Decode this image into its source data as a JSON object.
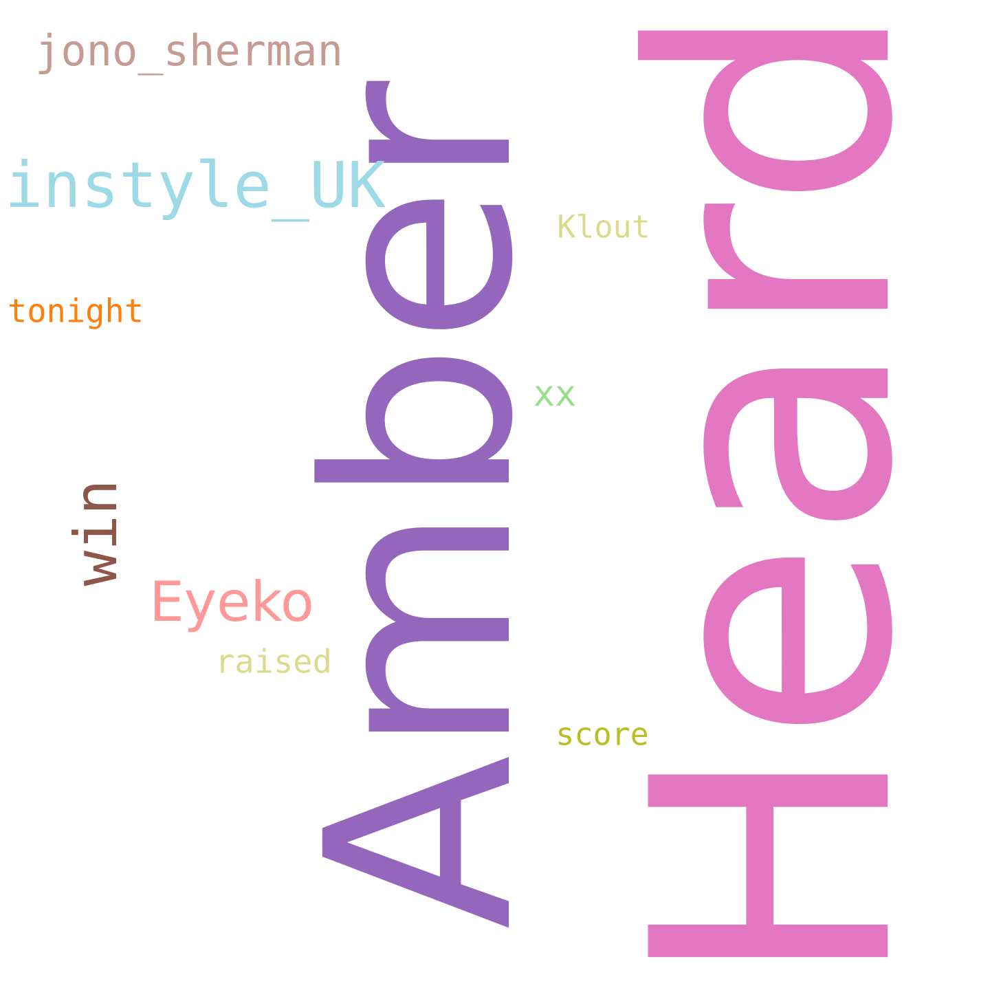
{
  "words": {
    "heard": {
      "text": "Heard",
      "color": "#e377c2"
    },
    "amber": {
      "text": "Amber",
      "color": "#9467bd"
    },
    "jono_sherman": {
      "text": "jono_sherman",
      "color": "#c49c94"
    },
    "instyle_uk": {
      "text": "instyle_UK",
      "color": "#9edae5"
    },
    "klout": {
      "text": "Klout",
      "color": "#dbdb8d"
    },
    "tonight": {
      "text": "tonight",
      "color": "#ff7f0e"
    },
    "xx": {
      "text": "xx",
      "color": "#98df8a"
    },
    "win": {
      "text": "win",
      "color": "#8c564b"
    },
    "eyeko": {
      "text": "Eyeko",
      "color": "#ff9896"
    },
    "raised": {
      "text": "raised",
      "color": "#dbdb8d"
    },
    "score": {
      "text": "score",
      "color": "#bcbd22"
    }
  }
}
